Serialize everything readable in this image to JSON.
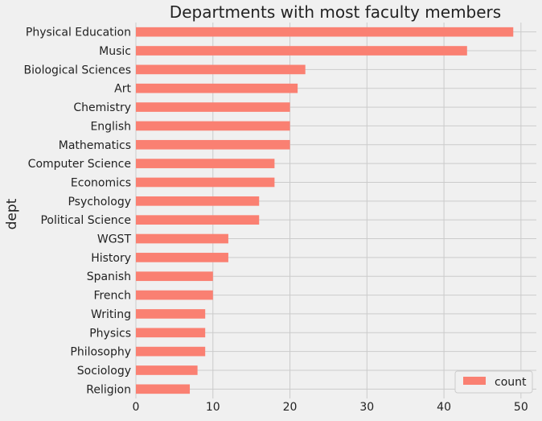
{
  "chart_data": {
    "type": "bar",
    "orientation": "horizontal",
    "title": "Departments with most faculty members",
    "xlabel": "",
    "ylabel": "dept",
    "categories": [
      "Physical Education",
      "Music",
      "Biological Sciences",
      "Art",
      "Chemistry",
      "English",
      "Mathematics",
      "Computer Science",
      "Economics",
      "Psychology",
      "Political Science",
      "WGST",
      "History",
      "Spanish",
      "French",
      "Writing",
      "Physics",
      "Philosophy",
      "Sociology",
      "Religion"
    ],
    "series": [
      {
        "name": "count",
        "color": "#fa8072",
        "values": [
          49,
          43,
          22,
          21,
          20,
          20,
          20,
          18,
          18,
          16,
          16,
          12,
          12,
          10,
          10,
          9,
          9,
          9,
          8,
          7
        ]
      }
    ],
    "xlim": [
      0,
      52
    ],
    "xticks": [
      0,
      10,
      20,
      30,
      40,
      50
    ],
    "grid": true,
    "legend": {
      "position": "lower-right"
    },
    "background": "#f0f0f0",
    "grid_color": "#cbcbcb"
  }
}
